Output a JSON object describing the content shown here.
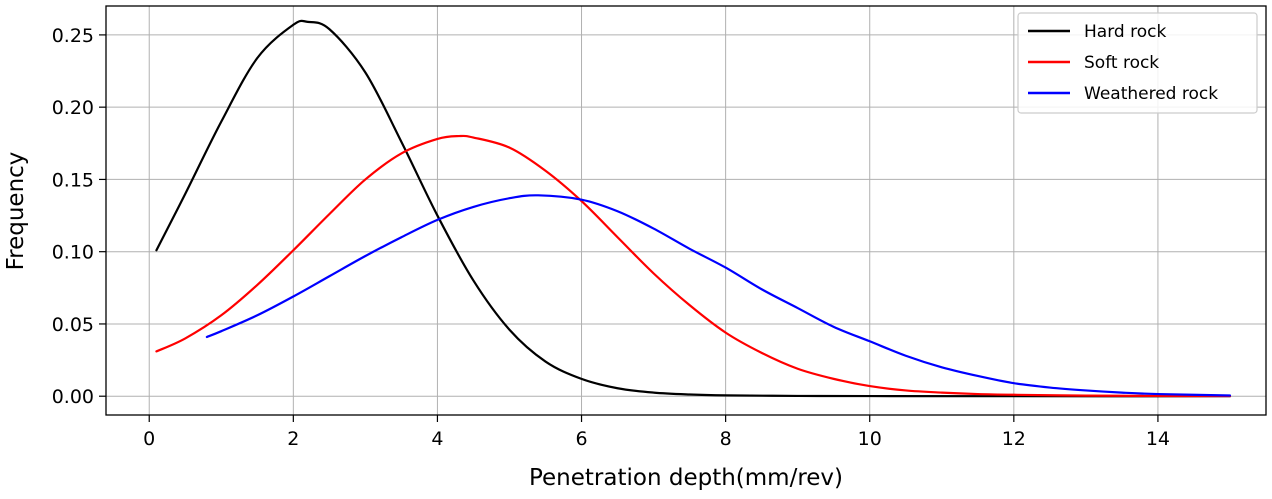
{
  "chart_data": {
    "type": "line",
    "title": "",
    "xlabel": "Penetration depth(mm/rev)",
    "ylabel": "Frequency",
    "xlim": [
      -0.6,
      15.5
    ],
    "ylim": [
      -0.013,
      0.27
    ],
    "grid": true,
    "legend_position": "top-right",
    "x_ticks": [
      0,
      2,
      4,
      6,
      8,
      10,
      12,
      14
    ],
    "x_tick_labels": [
      "0",
      "2",
      "4",
      "6",
      "8",
      "10",
      "12",
      "14"
    ],
    "y_ticks": [
      0.0,
      0.05,
      0.1,
      0.15,
      0.2,
      0.25
    ],
    "y_tick_labels": [
      "0.00",
      "0.05",
      "0.10",
      "0.15",
      "0.20",
      "0.25"
    ],
    "series": [
      {
        "name": "Hard rock",
        "color": "#000000",
        "x": [
          0.1,
          0.5,
          1.0,
          1.5,
          2.0,
          2.2,
          2.5,
          3.0,
          3.5,
          4.0,
          4.5,
          5.0,
          5.5,
          6.0,
          6.5,
          7.0,
          7.5,
          8.0,
          9.0,
          10.0,
          12.0,
          15.0
        ],
        "values": [
          0.101,
          0.14,
          0.19,
          0.234,
          0.257,
          0.259,
          0.254,
          0.224,
          0.176,
          0.125,
          0.08,
          0.046,
          0.024,
          0.012,
          0.0055,
          0.0025,
          0.0012,
          0.0006,
          0.0002,
          0.0001,
          0.0,
          0.0
        ]
      },
      {
        "name": "Soft rock",
        "color": "#ff0000",
        "x": [
          0.1,
          0.5,
          1.0,
          1.5,
          2.0,
          2.5,
          3.0,
          3.5,
          4.0,
          4.3,
          4.5,
          5.0,
          5.5,
          6.0,
          6.5,
          7.0,
          7.5,
          8.0,
          8.5,
          9.0,
          9.5,
          10.0,
          10.5,
          11.0,
          11.5,
          12.0,
          13.0,
          14.0,
          15.0
        ],
        "values": [
          0.031,
          0.04,
          0.056,
          0.077,
          0.101,
          0.126,
          0.15,
          0.168,
          0.178,
          0.18,
          0.179,
          0.172,
          0.156,
          0.135,
          0.11,
          0.085,
          0.063,
          0.044,
          0.03,
          0.019,
          0.012,
          0.007,
          0.004,
          0.0025,
          0.0015,
          0.001,
          0.0004,
          0.0002,
          0.0001
        ]
      },
      {
        "name": "Weathered rock",
        "color": "#0000ff",
        "x": [
          0.8,
          1.0,
          1.5,
          2.0,
          2.5,
          3.0,
          3.5,
          4.0,
          4.5,
          5.0,
          5.4,
          6.0,
          6.5,
          7.0,
          7.5,
          8.0,
          8.5,
          9.0,
          9.5,
          10.0,
          10.5,
          11.0,
          11.5,
          12.0,
          12.5,
          13.0,
          13.5,
          14.0,
          15.0
        ],
        "values": [
          0.041,
          0.045,
          0.056,
          0.069,
          0.083,
          0.097,
          0.11,
          0.122,
          0.131,
          0.137,
          0.139,
          0.136,
          0.128,
          0.116,
          0.102,
          0.089,
          0.074,
          0.061,
          0.048,
          0.038,
          0.028,
          0.02,
          0.014,
          0.009,
          0.006,
          0.004,
          0.0025,
          0.0015,
          0.0005
        ]
      }
    ]
  }
}
